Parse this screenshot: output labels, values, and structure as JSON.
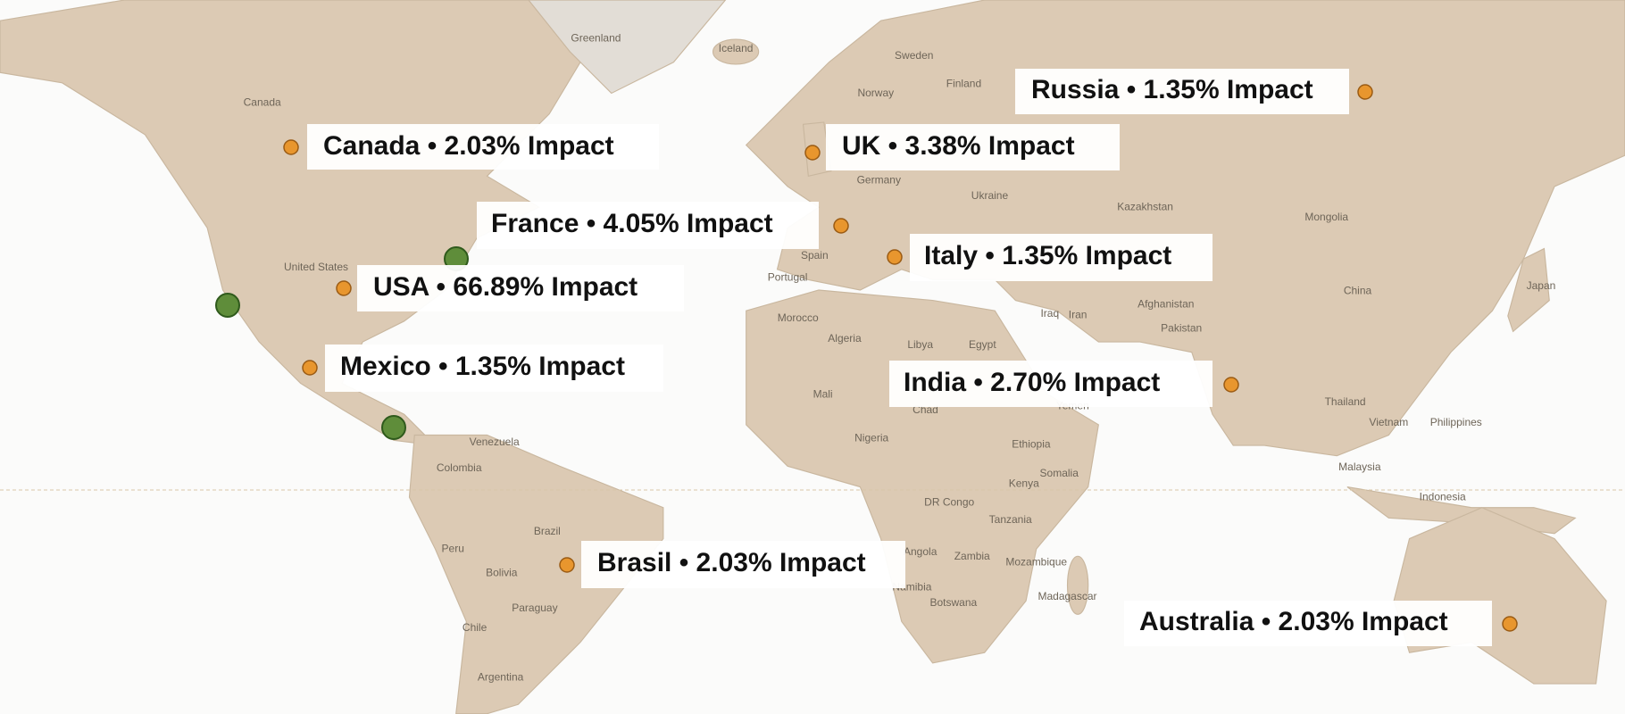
{
  "markers": [
    {
      "label": "Canada • 2.03% Impact"
    },
    {
      "label": "UK • 3.38% Impact"
    },
    {
      "label": "Russia • 1.35% Impact"
    },
    {
      "label": "France • 4.05% Impact"
    },
    {
      "label": "Italy • 1.35% Impact"
    },
    {
      "label": "USA • 66.89% Impact"
    },
    {
      "label": "Mexico • 1.35% Impact"
    },
    {
      "label": "India • 2.70% Impact"
    },
    {
      "label": "Brasil • 2.03% Impact"
    },
    {
      "label": "Australia • 2.03% Impact"
    }
  ],
  "map_labels": [
    "Greenland",
    "Iceland",
    "Sweden",
    "Norway",
    "Finland",
    "Canada",
    "United States",
    "Germany",
    "Ukraine",
    "Kazakhstan",
    "Mongolia",
    "China",
    "Japan",
    "Iran",
    "Iraq",
    "Afghanistan",
    "Pakistan",
    "Egypt",
    "Libya",
    "Algeria",
    "Morocco",
    "Spain",
    "Portugal",
    "Mali",
    "Chad",
    "Nigeria",
    "Ethiopia",
    "Kenya",
    "DR Congo",
    "Tanzania",
    "Angola",
    "Zambia",
    "Mozambique",
    "Namibia",
    "Botswana",
    "Madagascar",
    "Colombia",
    "Venezuela",
    "Peru",
    "Brazil",
    "Bolivia",
    "Paraguay",
    "Chile",
    "Argentina",
    "Thailand",
    "Vietnam",
    "Philippines",
    "Malaysia",
    "Indonesia",
    "Yemen",
    "Somalia"
  ]
}
